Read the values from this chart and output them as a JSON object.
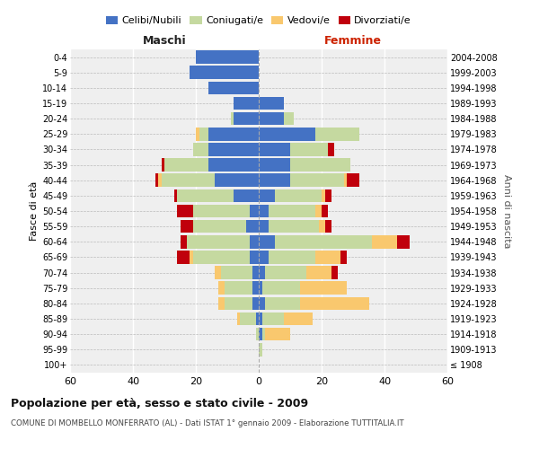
{
  "age_groups": [
    "100+",
    "95-99",
    "90-94",
    "85-89",
    "80-84",
    "75-79",
    "70-74",
    "65-69",
    "60-64",
    "55-59",
    "50-54",
    "45-49",
    "40-44",
    "35-39",
    "30-34",
    "25-29",
    "20-24",
    "15-19",
    "10-14",
    "5-9",
    "0-4"
  ],
  "birth_years": [
    "≤ 1908",
    "1909-1913",
    "1914-1918",
    "1919-1923",
    "1924-1928",
    "1929-1933",
    "1934-1938",
    "1939-1943",
    "1944-1948",
    "1949-1953",
    "1954-1958",
    "1959-1963",
    "1964-1968",
    "1969-1973",
    "1974-1978",
    "1979-1983",
    "1984-1988",
    "1989-1993",
    "1994-1998",
    "1999-2003",
    "2004-2008"
  ],
  "colors": {
    "celibi": "#4472C4",
    "coniugati": "#C5D9A0",
    "vedovi": "#F9C86E",
    "divorziati": "#C0000C"
  },
  "maschi": {
    "celibi": [
      0,
      0,
      0,
      1,
      2,
      2,
      2,
      3,
      3,
      4,
      3,
      8,
      14,
      16,
      16,
      16,
      8,
      8,
      16,
      22,
      20
    ],
    "coniugati": [
      0,
      0,
      1,
      5,
      9,
      9,
      10,
      18,
      20,
      17,
      18,
      18,
      17,
      14,
      5,
      3,
      1,
      0,
      0,
      0,
      0
    ],
    "vedovi": [
      0,
      0,
      0,
      1,
      2,
      2,
      2,
      1,
      0,
      0,
      0,
      0,
      1,
      0,
      0,
      1,
      0,
      0,
      0,
      0,
      0
    ],
    "divorziati": [
      0,
      0,
      0,
      0,
      0,
      0,
      0,
      4,
      2,
      4,
      5,
      1,
      1,
      1,
      0,
      0,
      0,
      0,
      0,
      0,
      0
    ]
  },
  "femmine": {
    "celibi": [
      0,
      0,
      1,
      1,
      2,
      1,
      2,
      3,
      5,
      3,
      3,
      5,
      10,
      10,
      10,
      18,
      8,
      8,
      0,
      0,
      0
    ],
    "coniugati": [
      0,
      1,
      1,
      7,
      11,
      12,
      13,
      15,
      31,
      16,
      15,
      15,
      17,
      19,
      12,
      14,
      3,
      0,
      0,
      0,
      0
    ],
    "vedovi": [
      0,
      0,
      8,
      9,
      22,
      15,
      8,
      8,
      8,
      2,
      2,
      1,
      1,
      0,
      0,
      0,
      0,
      0,
      0,
      0,
      0
    ],
    "divorziati": [
      0,
      0,
      0,
      0,
      0,
      0,
      2,
      2,
      4,
      2,
      2,
      2,
      4,
      0,
      2,
      0,
      0,
      0,
      0,
      0,
      0
    ]
  },
  "xlim": 60,
  "title": "Popolazione per età, sesso e stato civile - 2009",
  "subtitle": "COMUNE DI MOMBELLO MONFERRATO (AL) - Dati ISTAT 1° gennaio 2009 - Elaborazione TUTTITALIA.IT",
  "xlabel_left": "Maschi",
  "xlabel_right": "Femmine",
  "ylabel_left": "Fasce di età",
  "ylabel_right": "Anni di nascita",
  "legend_labels": [
    "Celibi/Nubili",
    "Coniugati/e",
    "Vedovi/e",
    "Divorziati/e"
  ],
  "bg_color": "#FFFFFF",
  "plot_bg_color": "#EFEFEF"
}
